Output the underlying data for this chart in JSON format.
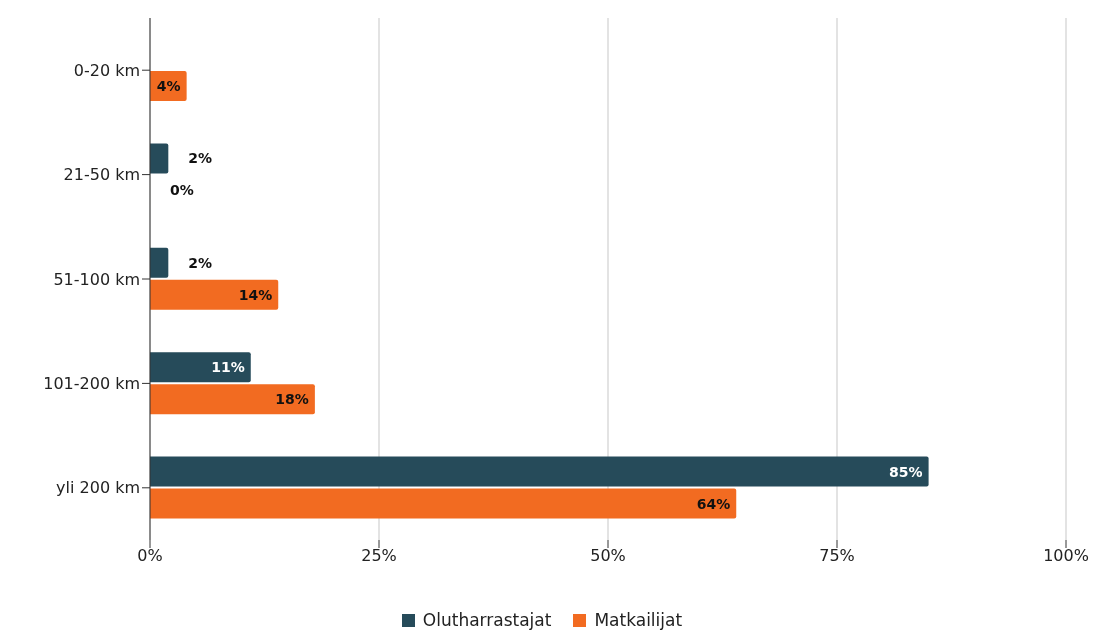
{
  "chart_data": {
    "type": "bar",
    "orientation": "horizontal",
    "categories": [
      "0-20 km",
      "21-50 km",
      "51-100 km",
      "101-200 km",
      "yli 200 km"
    ],
    "series": [
      {
        "name": "Olutharrastajat",
        "color": "#264b5a",
        "values": [
          null,
          2,
          2,
          11,
          85
        ],
        "value_labels": [
          null,
          "2%",
          "2%",
          "11%",
          "85%"
        ]
      },
      {
        "name": "Matkailijat",
        "color": "#f26b21",
        "values": [
          4,
          0,
          14,
          18,
          64
        ],
        "value_labels": [
          "4%",
          "0%",
          "14%",
          "18%",
          "64%"
        ]
      }
    ],
    "xlim": [
      0,
      100
    ],
    "xticks": [
      {
        "value": 0,
        "label": "0%"
      },
      {
        "value": 25,
        "label": "25%"
      },
      {
        "value": 50,
        "label": "50%"
      },
      {
        "value": 75,
        "label": "75%"
      },
      {
        "value": 100,
        "label": "100%"
      }
    ],
    "grid": "x",
    "legend": "bottom"
  }
}
